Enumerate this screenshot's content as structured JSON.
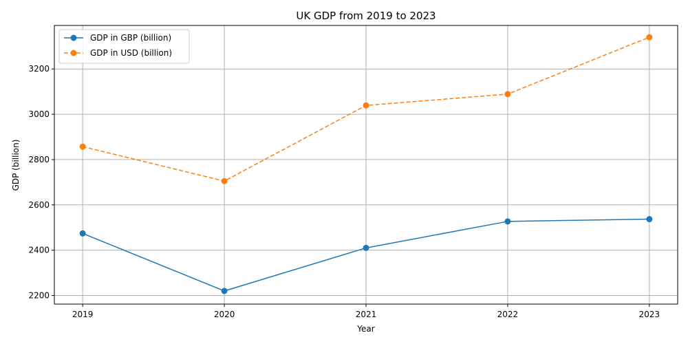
{
  "chart_data": {
    "type": "line",
    "title": "UK GDP from 2019 to 2023",
    "xlabel": "Year",
    "ylabel": "GDP (billion)",
    "x": [
      2019,
      2020,
      2021,
      2022,
      2023
    ],
    "x_tick_labels": [
      "2019",
      "2020",
      "2021",
      "2022",
      "2023"
    ],
    "xlim": [
      2018.8,
      2023.2
    ],
    "ylim": [
      2162,
      3392
    ],
    "y_ticks": [
      2200,
      2400,
      2600,
      2800,
      3000,
      3200
    ],
    "y_tick_labels": [
      "2200",
      "2400",
      "2600",
      "2800",
      "3000",
      "3200"
    ],
    "grid": true,
    "legend_position": "top-left",
    "series": [
      {
        "name": "GDP in GBP (billion)",
        "values": [
          2474,
          2220,
          2410,
          2527,
          2537
        ],
        "color": "#1f77b4",
        "line_style": "solid",
        "marker": "circle"
      },
      {
        "name": "GDP in USD (billion)",
        "values": [
          2857,
          2705,
          3039,
          3089,
          3340
        ],
        "color": "#ff7f0e",
        "line_style": "dashed",
        "marker": "circle"
      }
    ]
  }
}
